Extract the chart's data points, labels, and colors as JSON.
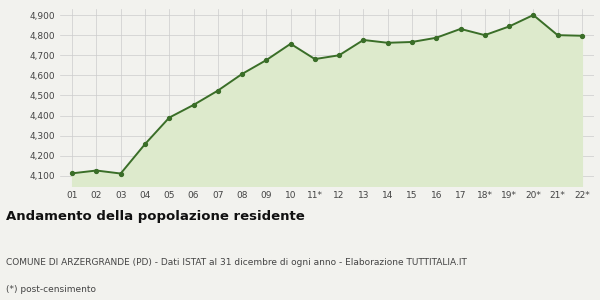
{
  "x_labels": [
    "01",
    "02",
    "03",
    "04",
    "05",
    "06",
    "07",
    "08",
    "09",
    "10",
    "11*",
    "12",
    "13",
    "14",
    "15",
    "16",
    "17",
    "18*",
    "19*",
    "20*",
    "21*",
    "22*"
  ],
  "values": [
    4113,
    4127,
    4112,
    4258,
    4390,
    4453,
    4524,
    4607,
    4676,
    4757,
    4681,
    4700,
    4776,
    4762,
    4766,
    4787,
    4831,
    4800,
    4843,
    4900,
    4800,
    4797
  ],
  "line_color": "#3a6e28",
  "fill_color": "#ddeacc",
  "marker": "o",
  "marker_size": 2.8,
  "line_width": 1.4,
  "ylim": [
    4050,
    4930
  ],
  "yticks": [
    4100,
    4200,
    4300,
    4400,
    4500,
    4600,
    4700,
    4800,
    4900
  ],
  "title1": "Andamento della popolazione residente",
  "title2": "COMUNE DI ARZERGRANDE (PD) - Dati ISTAT al 31 dicembre di ogni anno - Elaborazione TUTTITALIA.IT",
  "title3": "(*) post-censimento",
  "bg_color": "#f2f2ee",
  "grid_color": "#cccccc",
  "title1_fontsize": 9.5,
  "title2_fontsize": 6.5,
  "title3_fontsize": 6.5,
  "tick_fontsize": 6.5
}
